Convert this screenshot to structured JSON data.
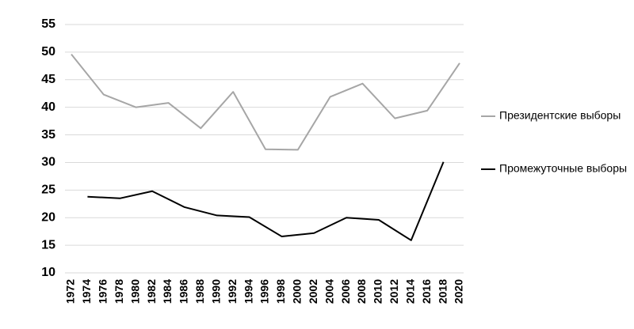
{
  "chart_data": {
    "type": "line",
    "series": [
      {
        "name": "Президентские выборы",
        "color": "#a6a6a6",
        "x": [
          1972,
          1976,
          1980,
          1984,
          1988,
          1992,
          1996,
          2000,
          2004,
          2008,
          2012,
          2016,
          2020
        ],
        "values": [
          49.6,
          42.3,
          40.0,
          40.8,
          36.2,
          42.8,
          32.4,
          32.3,
          41.9,
          44.3,
          38.0,
          39.4,
          48.0
        ]
      },
      {
        "name": "Промежуточные выборы",
        "color": "#000000",
        "x": [
          1974,
          1978,
          1982,
          1986,
          1990,
          1994,
          1998,
          2002,
          2006,
          2010,
          2014,
          2018
        ],
        "values": [
          23.8,
          23.5,
          24.8,
          21.9,
          20.4,
          20.1,
          16.6,
          17.2,
          20.0,
          19.6,
          15.9,
          30.1
        ]
      }
    ],
    "xlim": [
      1972,
      2020
    ],
    "xticks": [
      1972,
      1974,
      1976,
      1978,
      1980,
      1982,
      1984,
      1986,
      1988,
      1990,
      1992,
      1994,
      1996,
      1998,
      2000,
      2002,
      2004,
      2006,
      2008,
      2010,
      2012,
      2014,
      2016,
      2018,
      2020
    ],
    "ylim": [
      10,
      55
    ],
    "yticks": [
      10,
      15,
      20,
      25,
      30,
      35,
      40,
      45,
      50,
      55
    ],
    "grid": true,
    "legend": "right"
  }
}
